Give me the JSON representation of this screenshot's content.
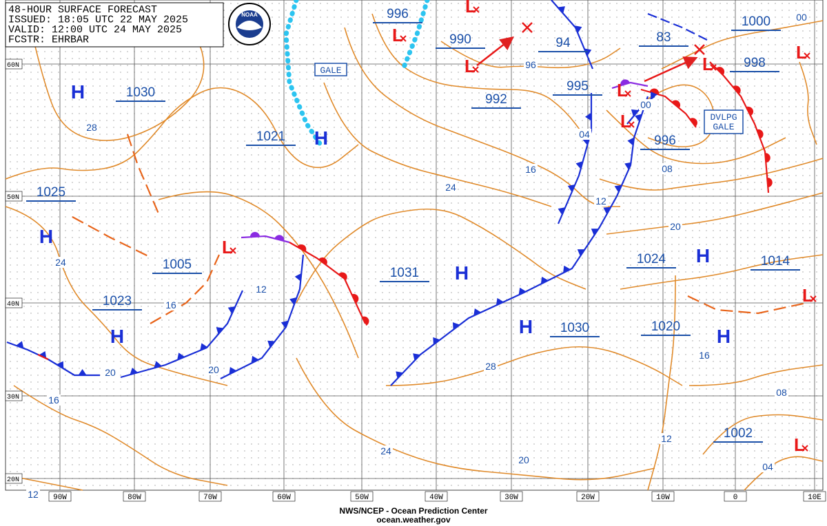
{
  "header": {
    "lines": [
      "48-HOUR SURFACE FORECAST",
      "ISSUED: 18:05 UTC 22 MAY 2025",
      "VALID:  12:00 UTC 24 MAY 2025",
      "FCSTR: EHRBAR"
    ],
    "logo": "NOAA"
  },
  "footer": {
    "line1": "NWS/NCEP - Ocean Prediction Center",
    "line2": "ocean.weather.gov"
  },
  "lat_labels": [
    "60N",
    "50N",
    "40N",
    "30N",
    "20N"
  ],
  "lon_labels": [
    "90W",
    "80W",
    "70W",
    "60W",
    "50W",
    "40W",
    "30W",
    "20W",
    "10W",
    "0",
    "10E"
  ],
  "centers": [
    "H",
    "H",
    "L",
    "H",
    "H",
    "L",
    "L",
    "L",
    "L",
    "L",
    "L",
    "L",
    "H",
    "H",
    "H",
    "L",
    "H",
    "L",
    "L"
  ],
  "pressure_values": [
    1030,
    1025,
    1005,
    1023,
    1021,
    996,
    990,
    992,
    94,
    995,
    83,
    1000,
    998,
    996,
    1031,
    1030,
    1024,
    1014,
    1020,
    1002
  ],
  "isobar_labels": [
    "28",
    "24",
    "16",
    "12",
    "20",
    "20",
    "16",
    "12",
    "24",
    "20",
    "28",
    "24",
    "16",
    "12",
    "04",
    "00",
    "08",
    "20",
    "16",
    "08",
    "12",
    "04",
    "96",
    "00"
  ],
  "annotations": {
    "gale": "GALE",
    "dvlpg": [
      "DVLPG",
      "GALE"
    ]
  }
}
